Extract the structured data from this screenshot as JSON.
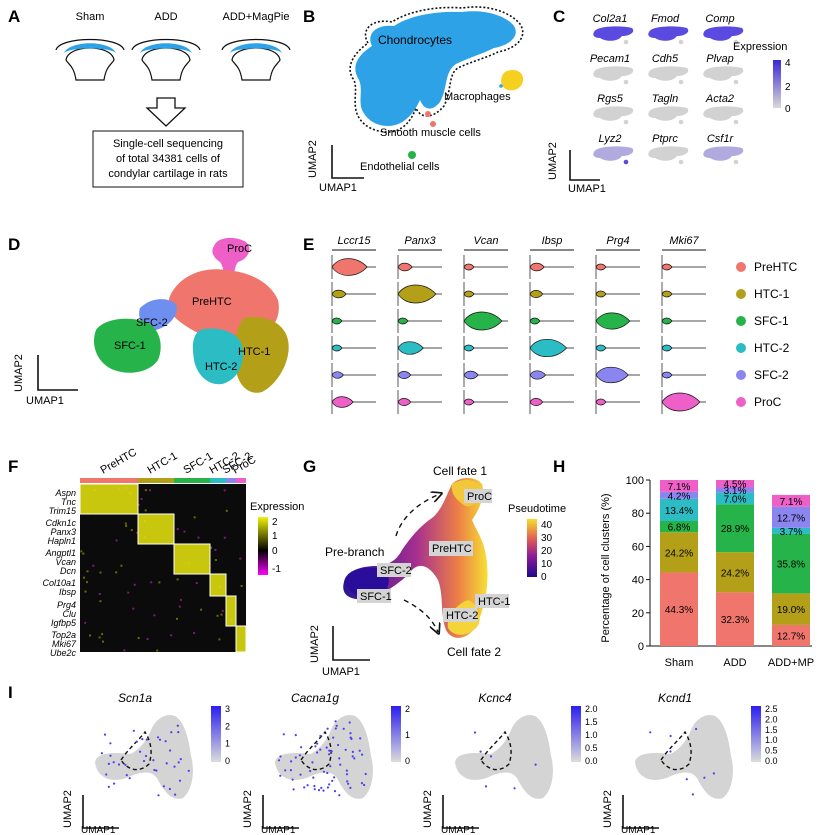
{
  "panel_labels": [
    "A",
    "B",
    "C",
    "D",
    "E",
    "F",
    "G",
    "H",
    "I"
  ],
  "panelA": {
    "groups": [
      "Sham",
      "ADD",
      "ADD+MagPie"
    ],
    "box_lines": [
      "Single-cell sequencing",
      "of total 34381 cells of",
      "condylar cartilage in rats"
    ]
  },
  "panelB": {
    "clusters": [
      "Chondrocytes",
      "Macrophages",
      "Smooth muscle cells",
      "Endothelial cells"
    ],
    "xlabel": "UMAP1",
    "ylabel": "UMAP2"
  },
  "panelC": {
    "genes": [
      "Col2a1",
      "Fmod",
      "Comp",
      "Pecam1",
      "Cdh5",
      "Plvap",
      "Rgs5",
      "Tagln",
      "Acta2",
      "Lyz2",
      "Ptprc",
      "Csf1r"
    ],
    "legend_title": "Expression",
    "ticks": [
      "4",
      "2",
      "0"
    ],
    "xlabel": "UMAP1",
    "ylabel": "UMAP2",
    "colors": {
      "high": "#3b28d6",
      "low": "#d9d9d9"
    }
  },
  "panelD": {
    "clusters": [
      "ProC",
      "PreHTC",
      "SFC-2",
      "SFC-1",
      "HTC-2",
      "HTC-1"
    ],
    "xlabel": "UMAP1",
    "ylabel": "UMAP2"
  },
  "panelE": {
    "genes": [
      "Lccr15",
      "Panx3",
      "Vcan",
      "Ibsp",
      "Prg4",
      "Mki67"
    ],
    "clusters": [
      {
        "name": "PreHTC",
        "color": "#f0766d"
      },
      {
        "name": "HTC-1",
        "color": "#b3a018"
      },
      {
        "name": "SFC-1",
        "color": "#26b34a"
      },
      {
        "name": "HTC-2",
        "color": "#2bbcc4"
      },
      {
        "name": "SFC-2",
        "color": "#8b85f0"
      },
      {
        "name": "ProC",
        "color": "#ee5fc8"
      }
    ]
  },
  "panelF": {
    "clusters": [
      "PreHTC",
      "HTC-1",
      "SFC-1",
      "HTC-2",
      "SFC-2",
      "ProC"
    ],
    "gene_groups": [
      [
        "Aspn",
        "Tnc",
        "Trim15"
      ],
      [
        "Cdkn1c",
        "Panx3",
        "Hapln1"
      ],
      [
        "Angptl1",
        "Vcan",
        "Dcn"
      ],
      [
        "Col10a1",
        "Ibsp"
      ],
      [
        "Prg4",
        "Clu",
        "Igfbp5"
      ],
      [
        "Top2a",
        "Mki67",
        "Ube2c"
      ]
    ],
    "legend_title": "Expression",
    "ticks": [
      "2",
      "1",
      "0",
      "-1"
    ],
    "colors": {
      "high": "#f2f20a",
      "mid": "#000000",
      "low": "#ff00ff"
    }
  },
  "panelG": {
    "labels": [
      "Cell fate 1",
      "ProC",
      "Pre-branch",
      "PreHTC",
      "SFC-2",
      "SFC-1",
      "HTC-1",
      "HTC-2",
      "Cell fate 2"
    ],
    "legend_title": "Pseudotime",
    "ticks": [
      "40",
      "30",
      "20",
      "10",
      "0"
    ],
    "xlabel": "UMAP1",
    "ylabel": "UMAP2"
  },
  "panelH": {
    "ylabel": "Percentage of cell clusters (%)",
    "yticks": [
      "0",
      "20",
      "40",
      "60",
      "80",
      "100"
    ]
  },
  "panelI": {
    "genes": [
      "Scn1a",
      "Cacna1g",
      "Kcnc4",
      "Kcnd1"
    ],
    "scales": [
      [
        "3",
        "2",
        "1",
        "0"
      ],
      [
        "2",
        "1",
        "0"
      ],
      [
        "2.0",
        "1.5",
        "1.0",
        "0.5",
        "0.0"
      ],
      [
        "2.5",
        "2.0",
        "1.5",
        "1.0",
        "0.5",
        "0.0"
      ]
    ],
    "xlabel": "UMAP1",
    "ylabel": "UMAP2"
  },
  "chart_data": {
    "type": "bar",
    "stacked": true,
    "categories": [
      "Sham",
      "ADD",
      "ADD+MP"
    ],
    "ylabel": "Percentage of cell clusters (%)",
    "ylim": [
      0,
      100
    ],
    "series": [
      {
        "color": "#f0766d",
        "values": [
          44.3,
          32.3,
          12.7
        ]
      },
      {
        "color": "#b3a018",
        "values": [
          24.2,
          24.2,
          19.0
        ]
      },
      {
        "color": "#26b34a",
        "values": [
          6.8,
          28.9,
          35.8
        ]
      },
      {
        "color": "#2bbcc4",
        "values": [
          13.4,
          7.0,
          3.7
        ]
      },
      {
        "color": "#8b85f0",
        "values": [
          4.2,
          3.1,
          12.7
        ]
      },
      {
        "color": "#ee5fc8",
        "values": [
          7.1,
          4.5,
          7.1
        ]
      }
    ],
    "labels": [
      [
        "44.3%",
        "24.2%",
        "6.8%",
        "13.4%",
        "4.2%",
        "7.1%"
      ],
      [
        "32.3%",
        "24.2%",
        "28.9%",
        "7.0%",
        "3.1%",
        "4.5%"
      ],
      [
        "12.7%",
        "19.0%",
        "35.8%",
        "3.7%",
        "12.7%",
        "7.1%"
      ]
    ]
  }
}
